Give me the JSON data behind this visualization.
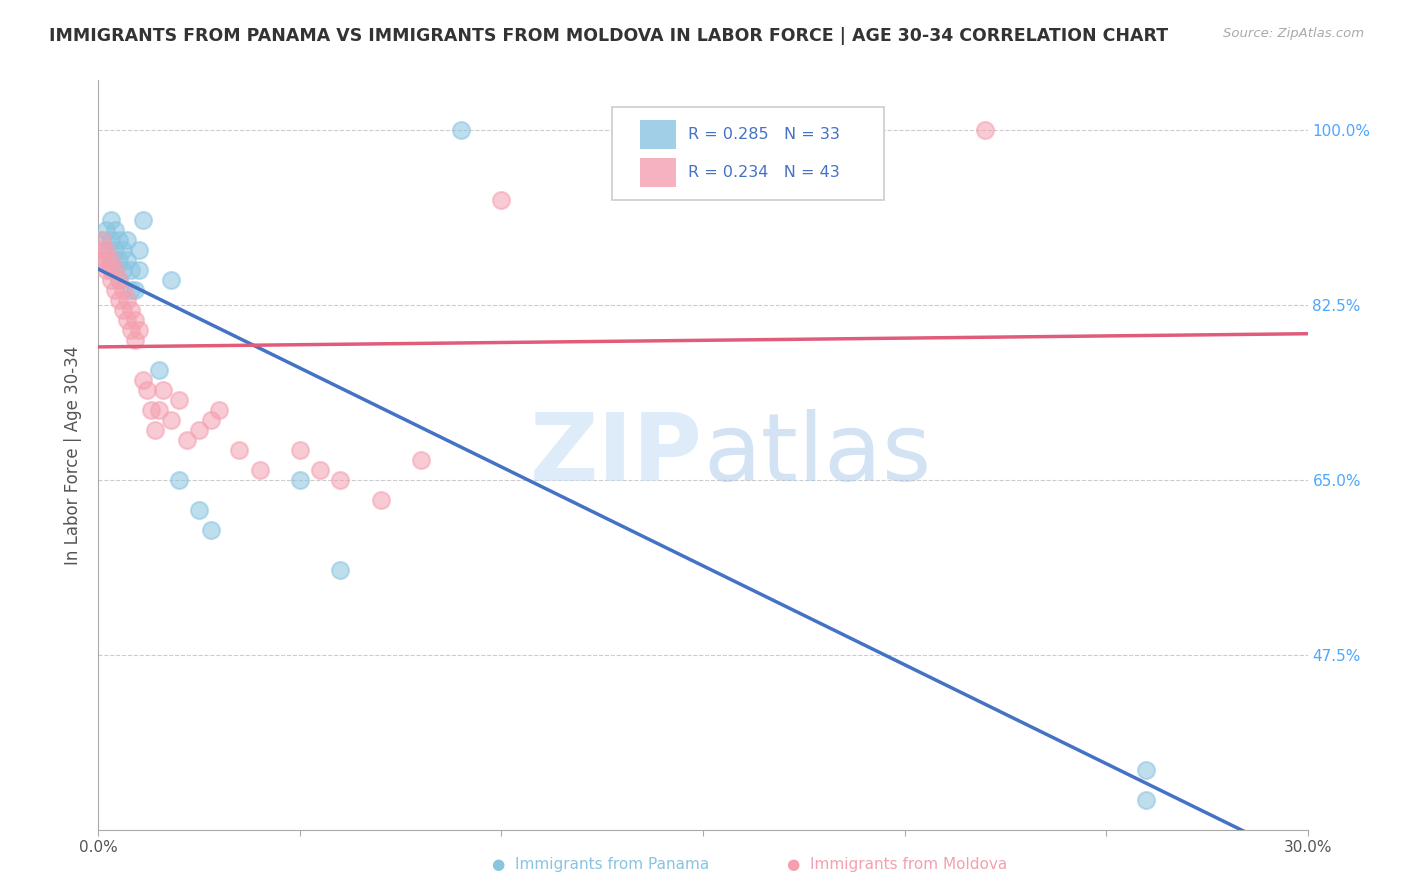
{
  "title": "IMMIGRANTS FROM PANAMA VS IMMIGRANTS FROM MOLDOVA IN LABOR FORCE | AGE 30-34 CORRELATION CHART",
  "source": "Source: ZipAtlas.com",
  "xlabel": "",
  "ylabel": "In Labor Force | Age 30-34",
  "xlim": [
    0.0,
    0.3
  ],
  "ylim": [
    0.3,
    1.05
  ],
  "xticks": [
    0.0,
    0.05,
    0.1,
    0.15,
    0.2,
    0.25,
    0.3
  ],
  "xticklabels": [
    "0.0%",
    "",
    "",
    "",
    "",
    "",
    "30.0%"
  ],
  "yticks": [
    0.3,
    0.475,
    0.65,
    0.825,
    1.0
  ],
  "yticklabels": [
    "",
    "47.5%",
    "65.0%",
    "82.5%",
    "100.0%"
  ],
  "panama_R": 0.285,
  "panama_N": 33,
  "moldova_R": 0.234,
  "moldova_N": 43,
  "panama_color": "#89c4e1",
  "moldova_color": "#f4a0b0",
  "panama_line_color": "#4472c4",
  "moldova_line_color": "#e05c7a",
  "background_color": "#ffffff",
  "watermark_zip": "ZIP",
  "watermark_atlas": "atlas",
  "panama_x": [
    0.001,
    0.001,
    0.002,
    0.002,
    0.003,
    0.003,
    0.003,
    0.004,
    0.004,
    0.004,
    0.005,
    0.005,
    0.005,
    0.006,
    0.006,
    0.007,
    0.007,
    0.008,
    0.008,
    0.009,
    0.01,
    0.01,
    0.011,
    0.015,
    0.018,
    0.02,
    0.025,
    0.028,
    0.05,
    0.06,
    0.09,
    0.26,
    0.26
  ],
  "panama_y": [
    0.87,
    0.89,
    0.88,
    0.9,
    0.87,
    0.89,
    0.91,
    0.86,
    0.88,
    0.9,
    0.85,
    0.87,
    0.89,
    0.86,
    0.88,
    0.87,
    0.89,
    0.84,
    0.86,
    0.84,
    0.86,
    0.88,
    0.91,
    0.76,
    0.85,
    0.65,
    0.62,
    0.6,
    0.65,
    0.56,
    1.0,
    0.36,
    0.33
  ],
  "moldova_x": [
    0.001,
    0.001,
    0.001,
    0.002,
    0.002,
    0.002,
    0.003,
    0.003,
    0.003,
    0.004,
    0.004,
    0.005,
    0.005,
    0.006,
    0.006,
    0.007,
    0.007,
    0.008,
    0.008,
    0.009,
    0.009,
    0.01,
    0.011,
    0.012,
    0.013,
    0.014,
    0.015,
    0.016,
    0.018,
    0.02,
    0.022,
    0.025,
    0.028,
    0.03,
    0.035,
    0.04,
    0.05,
    0.055,
    0.06,
    0.07,
    0.08,
    0.1,
    0.22
  ],
  "moldova_y": [
    0.87,
    0.88,
    0.89,
    0.86,
    0.87,
    0.88,
    0.85,
    0.86,
    0.87,
    0.84,
    0.86,
    0.83,
    0.85,
    0.82,
    0.84,
    0.81,
    0.83,
    0.8,
    0.82,
    0.79,
    0.81,
    0.8,
    0.75,
    0.74,
    0.72,
    0.7,
    0.72,
    0.74,
    0.71,
    0.73,
    0.69,
    0.7,
    0.71,
    0.72,
    0.68,
    0.66,
    0.68,
    0.66,
    0.65,
    0.63,
    0.67,
    0.93,
    1.0
  ]
}
